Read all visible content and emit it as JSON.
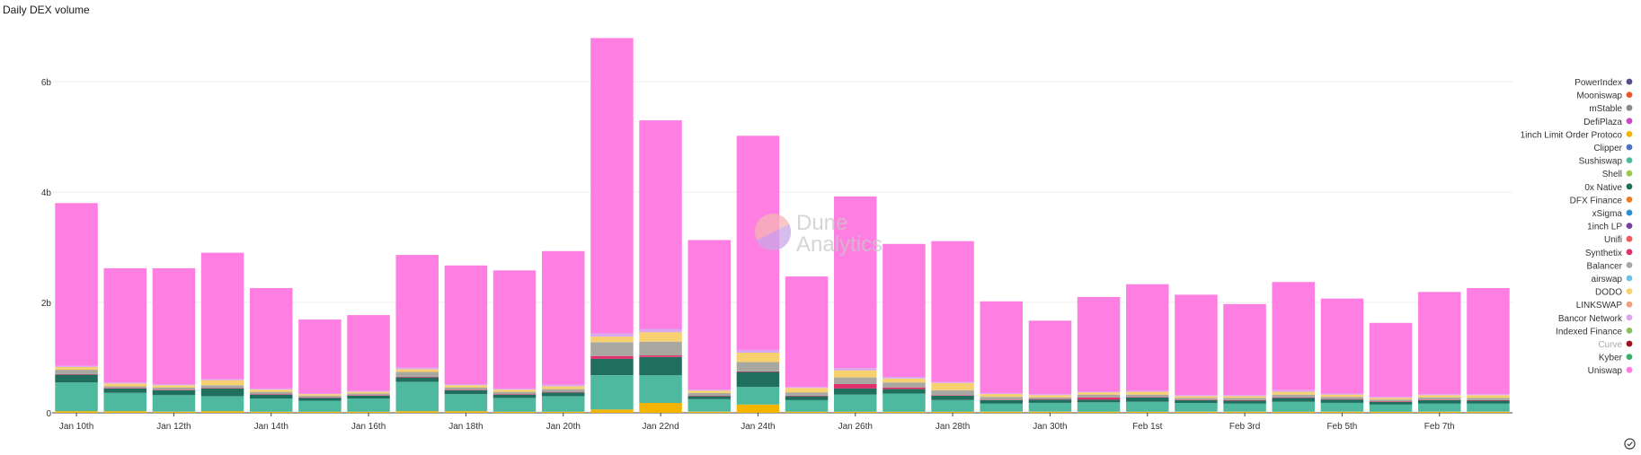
{
  "chart_data": {
    "type": "bar",
    "stacked": true,
    "title": "Daily DEX volume",
    "y_ticks": [
      "0",
      "2b",
      "4b",
      "6b"
    ],
    "y_tick_values": [
      0,
      2,
      4,
      6
    ],
    "ylim": [
      0,
      7
    ],
    "unit": "billion USD",
    "grid": true,
    "legend_position": "right",
    "x_labels": [
      "Jan 10th",
      "Jan 12th",
      "Jan 14th",
      "Jan 16th",
      "Jan 18th",
      "Jan 20th",
      "Jan 22nd",
      "Jan 24th",
      "Jan 26th",
      "Jan 28th",
      "Jan 30th",
      "Feb 1st",
      "Feb 3rd",
      "Feb 5th",
      "Feb 7th"
    ],
    "x_label_every": 2,
    "days": 30,
    "legend": [
      {
        "name": "PowerIndex",
        "color": "#5b4b8a"
      },
      {
        "name": "Mooniswap",
        "color": "#e8562a"
      },
      {
        "name": "mStable",
        "color": "#8a8a8a"
      },
      {
        "name": "DefiPlaza",
        "color": "#c54cc0"
      },
      {
        "name": "1inch Limit Order Protoco",
        "color": "#f5b400"
      },
      {
        "name": "Clipper",
        "color": "#4a72c4"
      },
      {
        "name": "Sushiswap",
        "color": "#4fb9a0"
      },
      {
        "name": "Shell",
        "color": "#9acb4e"
      },
      {
        "name": "0x Native",
        "color": "#1f6e5e"
      },
      {
        "name": "DFX Finance",
        "color": "#f07a1e"
      },
      {
        "name": "xSigma",
        "color": "#2a8fd6"
      },
      {
        "name": "1inch LP",
        "color": "#7b3f9e"
      },
      {
        "name": "Unifi",
        "color": "#f05a5a"
      },
      {
        "name": "Synthetix",
        "color": "#e0306a"
      },
      {
        "name": "Balancer",
        "color": "#a8a8a0"
      },
      {
        "name": "airswap",
        "color": "#6ec1e4"
      },
      {
        "name": "DODO",
        "color": "#f7d070"
      },
      {
        "name": "LINKSWAP",
        "color": "#f0a07a"
      },
      {
        "name": "Bancor Network",
        "color": "#d9a8f0"
      },
      {
        "name": "Indexed Finance",
        "color": "#8cc063"
      },
      {
        "name": "Curve",
        "color": "#a01020",
        "muted": true
      },
      {
        "name": "Kyber",
        "color": "#3ab06a"
      },
      {
        "name": "Uniswap",
        "color": "#ff7ee2"
      }
    ],
    "stack_order": [
      "1inch Limit Order Protoco",
      "Sushiswap",
      "0x Native",
      "Synthetix",
      "Balancer",
      "DODO",
      "Bancor Network",
      "Uniswap"
    ],
    "series": [
      {
        "name": "1inch Limit Order Protoco",
        "values": [
          0.03,
          0.03,
          0.02,
          0.03,
          0.02,
          0.02,
          0.02,
          0.03,
          0.03,
          0.02,
          0.02,
          0.06,
          0.18,
          0.02,
          0.15,
          0.02,
          0.02,
          0.02,
          0.02,
          0.02,
          0.02,
          0.02,
          0.02,
          0.02,
          0.02,
          0.02,
          0.02,
          0.02,
          0.02,
          0.02
        ]
      },
      {
        "name": "Sushiswap",
        "values": [
          0.52,
          0.33,
          0.3,
          0.27,
          0.24,
          0.2,
          0.24,
          0.53,
          0.31,
          0.25,
          0.28,
          0.62,
          0.5,
          0.23,
          0.32,
          0.21,
          0.31,
          0.33,
          0.21,
          0.15,
          0.16,
          0.17,
          0.18,
          0.16,
          0.15,
          0.18,
          0.16,
          0.13,
          0.15,
          0.15
        ]
      },
      {
        "name": "0x Native",
        "values": [
          0.14,
          0.08,
          0.09,
          0.14,
          0.07,
          0.05,
          0.05,
          0.08,
          0.07,
          0.06,
          0.07,
          0.3,
          0.33,
          0.05,
          0.27,
          0.07,
          0.11,
          0.08,
          0.08,
          0.06,
          0.06,
          0.05,
          0.08,
          0.05,
          0.05,
          0.07,
          0.06,
          0.05,
          0.06,
          0.05
        ]
      },
      {
        "name": "Synthetix",
        "values": [
          0.01,
          0.01,
          0.01,
          0.01,
          0.01,
          0.01,
          0.01,
          0.01,
          0.01,
          0.01,
          0.01,
          0.05,
          0.03,
          0.01,
          0.01,
          0.01,
          0.08,
          0.03,
          0.01,
          0.01,
          0.01,
          0.04,
          0.01,
          0.01,
          0.01,
          0.01,
          0.01,
          0.01,
          0.01,
          0.01
        ]
      },
      {
        "name": "Balancer",
        "values": [
          0.08,
          0.03,
          0.04,
          0.05,
          0.04,
          0.03,
          0.03,
          0.09,
          0.04,
          0.04,
          0.05,
          0.25,
          0.25,
          0.05,
          0.17,
          0.06,
          0.12,
          0.09,
          0.09,
          0.05,
          0.03,
          0.05,
          0.04,
          0.03,
          0.04,
          0.05,
          0.04,
          0.03,
          0.04,
          0.04
        ]
      },
      {
        "name": "DODO",
        "values": [
          0.05,
          0.05,
          0.04,
          0.09,
          0.04,
          0.03,
          0.03,
          0.05,
          0.04,
          0.04,
          0.05,
          0.1,
          0.17,
          0.04,
          0.17,
          0.08,
          0.13,
          0.07,
          0.13,
          0.05,
          0.04,
          0.04,
          0.05,
          0.03,
          0.03,
          0.05,
          0.04,
          0.03,
          0.04,
          0.05
        ]
      },
      {
        "name": "Bancor Network",
        "values": [
          0.02,
          0.02,
          0.02,
          0.02,
          0.02,
          0.01,
          0.02,
          0.03,
          0.02,
          0.02,
          0.03,
          0.06,
          0.06,
          0.02,
          0.05,
          0.02,
          0.04,
          0.03,
          0.02,
          0.02,
          0.02,
          0.02,
          0.02,
          0.02,
          0.02,
          0.03,
          0.02,
          0.02,
          0.02,
          0.02
        ]
      },
      {
        "name": "Uniswap",
        "values": [
          2.95,
          2.07,
          2.1,
          2.29,
          1.82,
          1.34,
          1.37,
          2.04,
          2.15,
          2.14,
          2.42,
          5.35,
          3.78,
          2.71,
          3.88,
          2.0,
          3.11,
          2.41,
          2.55,
          1.66,
          1.33,
          1.71,
          1.93,
          1.82,
          1.65,
          1.96,
          1.72,
          1.34,
          1.85,
          1.92
        ]
      }
    ],
    "watermark": {
      "line1": "Dune",
      "line2": "Analytics"
    }
  }
}
